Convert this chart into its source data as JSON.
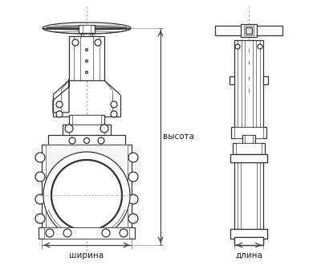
{
  "bg_color": "#ffffff",
  "line_color": "#333333",
  "line_width": 0.9,
  "thin_line": 0.45,
  "label_color": "#222222",
  "label_fontsize": 7.5,
  "label_font": "DejaVu Sans",
  "text_vysota": "высота",
  "text_shirina": "ширина",
  "text_dlina": "длина",
  "fig_width": 4.0,
  "fig_height": 3.46,
  "dpi": 100
}
